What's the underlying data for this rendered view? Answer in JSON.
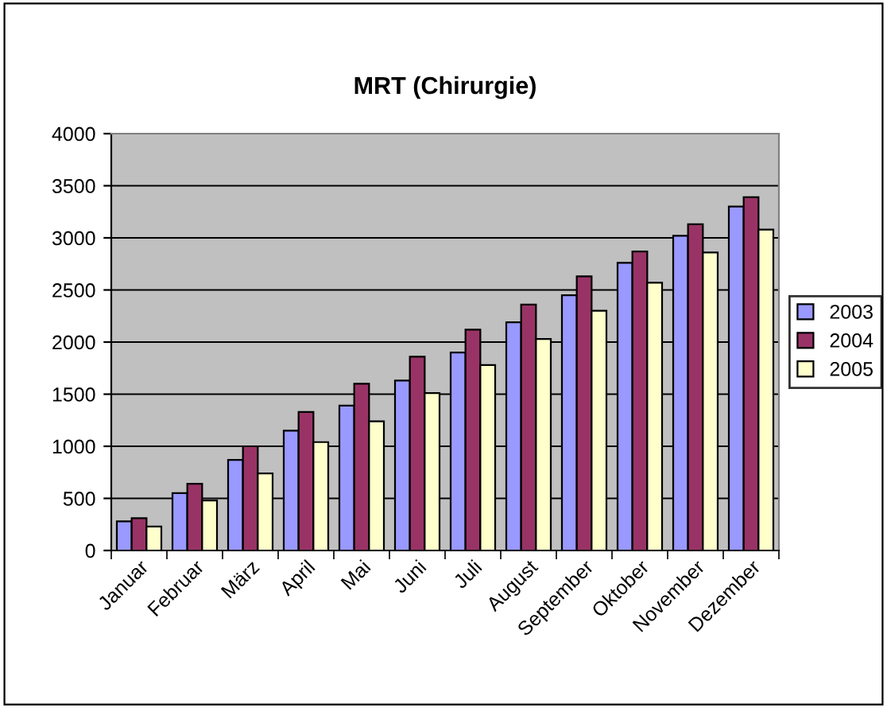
{
  "chart_data": {
    "type": "bar",
    "title": "MRT (Chirurgie)",
    "categories": [
      "Januar",
      "Februar",
      "März",
      "April",
      "Mai",
      "Juni",
      "Juli",
      "August",
      "September",
      "Oktober",
      "November",
      "Dezember"
    ],
    "series": [
      {
        "name": "2003",
        "color": "#9999ff",
        "values": [
          280,
          550,
          870,
          1150,
          1390,
          1630,
          1900,
          2190,
          2450,
          2760,
          3020,
          3300
        ]
      },
      {
        "name": "2004",
        "color": "#993366",
        "values": [
          310,
          640,
          1000,
          1330,
          1600,
          1860,
          2120,
          2360,
          2630,
          2870,
          3130,
          3390
        ]
      },
      {
        "name": "2005",
        "color": "#ffffcc",
        "values": [
          230,
          480,
          740,
          1040,
          1240,
          1510,
          1780,
          2030,
          2300,
          2570,
          2860,
          3080
        ]
      }
    ],
    "ylim": [
      0,
      4000
    ],
    "yticks": [
      0,
      500,
      1000,
      1500,
      2000,
      2500,
      3000,
      3500,
      4000
    ],
    "grid": "y",
    "legend": "right"
  }
}
